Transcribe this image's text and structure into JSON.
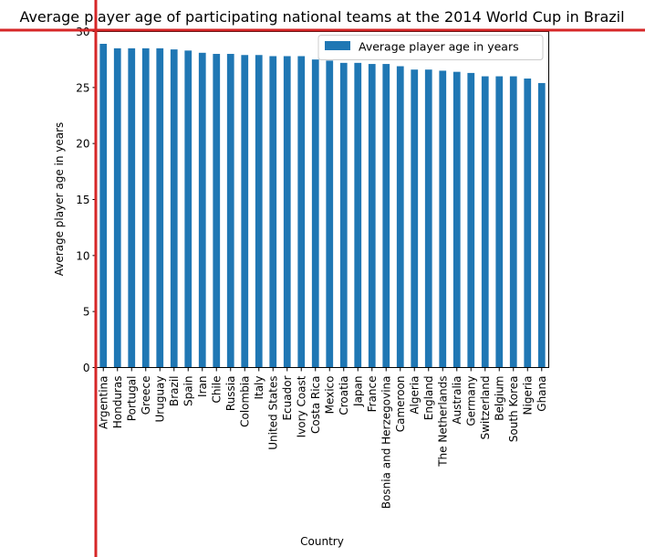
{
  "chart_data": {
    "type": "bar",
    "title": "Average player age of participating national teams at the 2014 World Cup in Brazil",
    "xlabel": "Country",
    "ylabel": "Average player age in years",
    "ylim": [
      0,
      30
    ],
    "yticks": [
      0,
      5,
      10,
      15,
      20,
      25,
      30
    ],
    "grid": false,
    "legend_position": "top-right",
    "bar_color": "#1f77b4",
    "marker_color": "#d62728",
    "categories": [
      "Argentina",
      "Honduras",
      "Portugal",
      "Greece",
      "Uruguay",
      "Brazil",
      "Spain",
      "Iran",
      "Chile",
      "Russia",
      "Colombia",
      "Italy",
      "United States",
      "Ecuador",
      "Ivory Coast",
      "Costa Rica",
      "Mexico",
      "Croatia",
      "Japan",
      "France",
      "Bosnia and Herzegovina",
      "Cameroon",
      "Algeria",
      "England",
      "The Netherlands",
      "Australia",
      "Germany",
      "Switzerland",
      "Belgium",
      "South Korea",
      "Nigeria",
      "Ghana"
    ],
    "series": [
      {
        "name": "Average player age in years",
        "values": [
          28.9,
          28.5,
          28.5,
          28.5,
          28.5,
          28.4,
          28.3,
          28.1,
          28.0,
          28.0,
          27.9,
          27.9,
          27.8,
          27.8,
          27.8,
          27.5,
          27.4,
          27.2,
          27.2,
          27.1,
          27.1,
          26.9,
          26.6,
          26.6,
          26.5,
          26.4,
          26.3,
          26.0,
          26.0,
          26.0,
          25.8,
          25.4
        ]
      }
    ]
  }
}
